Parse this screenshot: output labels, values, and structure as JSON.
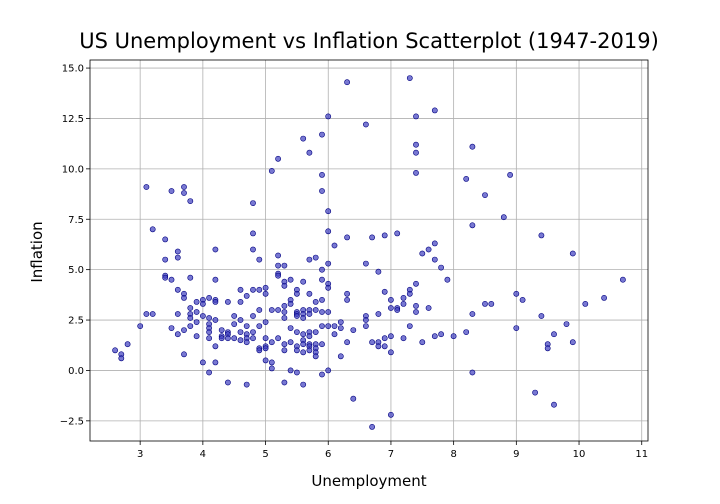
{
  "chart_data": {
    "type": "scatter",
    "title": "US Unemployment vs Inflation Scatterplot (1947-2019)",
    "xlabel": "Unemployment",
    "ylabel": "Inflation",
    "xlim": [
      2.2,
      11.1
    ],
    "ylim": [
      -3.5,
      15.4
    ],
    "xticks": [
      3,
      4,
      5,
      6,
      7,
      8,
      9,
      10,
      11
    ],
    "yticks": [
      -2.5,
      0.0,
      2.5,
      5.0,
      7.5,
      10.0,
      12.5,
      15.0
    ],
    "ytick_labels": [
      "−2.5",
      "0.0",
      "2.5",
      "5.0",
      "7.5",
      "10.0",
      "12.5",
      "15.0"
    ],
    "grid": true,
    "marker_color": "#3f3fbf",
    "marker_edge_color": "#000080",
    "points": [
      [
        2.6,
        1.0
      ],
      [
        2.7,
        0.8
      ],
      [
        2.7,
        0.6
      ],
      [
        2.8,
        1.3
      ],
      [
        3.0,
        2.2
      ],
      [
        3.1,
        9.1
      ],
      [
        3.1,
        2.8
      ],
      [
        3.2,
        7.0
      ],
      [
        3.2,
        2.8
      ],
      [
        3.4,
        6.5
      ],
      [
        3.4,
        5.5
      ],
      [
        3.4,
        4.7
      ],
      [
        3.4,
        4.6
      ],
      [
        3.5,
        8.9
      ],
      [
        3.5,
        4.5
      ],
      [
        3.5,
        2.1
      ],
      [
        3.6,
        5.9
      ],
      [
        3.6,
        5.6
      ],
      [
        3.6,
        4.0
      ],
      [
        3.6,
        2.8
      ],
      [
        3.6,
        1.8
      ],
      [
        3.7,
        9.1
      ],
      [
        3.7,
        8.8
      ],
      [
        3.7,
        3.8
      ],
      [
        3.7,
        3.6
      ],
      [
        3.7,
        2.0
      ],
      [
        3.7,
        0.8
      ],
      [
        3.8,
        8.4
      ],
      [
        3.8,
        4.6
      ],
      [
        3.8,
        3.1
      ],
      [
        3.8,
        2.8
      ],
      [
        3.8,
        2.6
      ],
      [
        3.8,
        2.2
      ],
      [
        3.9,
        3.4
      ],
      [
        3.9,
        2.9
      ],
      [
        3.9,
        2.4
      ],
      [
        3.9,
        1.7
      ],
      [
        4.0,
        3.5
      ],
      [
        4.0,
        3.3
      ],
      [
        4.0,
        2.7
      ],
      [
        4.0,
        0.4
      ],
      [
        4.1,
        3.6
      ],
      [
        4.1,
        2.6
      ],
      [
        4.1,
        2.3
      ],
      [
        4.1,
        2.1
      ],
      [
        4.1,
        1.9
      ],
      [
        4.1,
        1.6
      ],
      [
        4.1,
        -0.1
      ],
      [
        4.2,
        6.0
      ],
      [
        4.2,
        4.5
      ],
      [
        4.2,
        3.5
      ],
      [
        4.2,
        3.4
      ],
      [
        4.2,
        2.5
      ],
      [
        4.2,
        1.2
      ],
      [
        4.2,
        0.4
      ],
      [
        4.3,
        2.0
      ],
      [
        4.3,
        1.7
      ],
      [
        4.3,
        1.6
      ],
      [
        4.4,
        3.4
      ],
      [
        4.4,
        1.9
      ],
      [
        4.4,
        1.8
      ],
      [
        4.4,
        1.6
      ],
      [
        4.4,
        -0.6
      ],
      [
        4.5,
        2.7
      ],
      [
        4.5,
        2.3
      ],
      [
        4.5,
        1.6
      ],
      [
        4.6,
        4.0
      ],
      [
        4.6,
        3.4
      ],
      [
        4.6,
        2.5
      ],
      [
        4.6,
        1.9
      ],
      [
        4.6,
        1.5
      ],
      [
        4.7,
        3.7
      ],
      [
        4.7,
        2.2
      ],
      [
        4.7,
        1.8
      ],
      [
        4.7,
        1.6
      ],
      [
        4.7,
        1.4
      ],
      [
        4.7,
        -0.7
      ],
      [
        4.8,
        8.3
      ],
      [
        4.8,
        6.8
      ],
      [
        4.8,
        6.0
      ],
      [
        4.8,
        4.0
      ],
      [
        4.8,
        2.7
      ],
      [
        4.8,
        1.9
      ],
      [
        4.8,
        1.6
      ],
      [
        4.9,
        5.5
      ],
      [
        4.9,
        4.0
      ],
      [
        4.9,
        3.0
      ],
      [
        4.9,
        2.2
      ],
      [
        4.9,
        1.1
      ],
      [
        4.9,
        1.0
      ],
      [
        5.0,
        4.1
      ],
      [
        5.0,
        3.8
      ],
      [
        5.0,
        2.4
      ],
      [
        5.0,
        1.6
      ],
      [
        5.0,
        1.2
      ],
      [
        5.0,
        1.1
      ],
      [
        5.0,
        0.5
      ],
      [
        5.1,
        9.9
      ],
      [
        5.1,
        3.0
      ],
      [
        5.1,
        1.4
      ],
      [
        5.1,
        0.4
      ],
      [
        5.1,
        0.1
      ],
      [
        5.2,
        10.5
      ],
      [
        5.2,
        5.7
      ],
      [
        5.2,
        5.2
      ],
      [
        5.2,
        4.8
      ],
      [
        5.2,
        4.7
      ],
      [
        5.2,
        3.0
      ],
      [
        5.2,
        1.6
      ],
      [
        5.3,
        5.2
      ],
      [
        5.3,
        4.4
      ],
      [
        5.3,
        4.2
      ],
      [
        5.3,
        3.2
      ],
      [
        5.3,
        2.9
      ],
      [
        5.3,
        2.6
      ],
      [
        5.3,
        1.3
      ],
      [
        5.3,
        1.0
      ],
      [
        5.3,
        -0.6
      ],
      [
        5.4,
        4.5
      ],
      [
        5.4,
        3.5
      ],
      [
        5.4,
        3.3
      ],
      [
        5.4,
        2.1
      ],
      [
        5.4,
        1.4
      ],
      [
        5.4,
        0.0
      ],
      [
        5.5,
        4.0
      ],
      [
        5.5,
        3.8
      ],
      [
        5.5,
        2.9
      ],
      [
        5.5,
        2.8
      ],
      [
        5.5,
        2.7
      ],
      [
        5.5,
        1.9
      ],
      [
        5.5,
        1.2
      ],
      [
        5.5,
        1.0
      ],
      [
        5.5,
        -0.1
      ],
      [
        5.6,
        11.5
      ],
      [
        5.6,
        4.4
      ],
      [
        5.6,
        3.0
      ],
      [
        5.6,
        2.8
      ],
      [
        5.6,
        2.6
      ],
      [
        5.6,
        1.8
      ],
      [
        5.6,
        1.5
      ],
      [
        5.6,
        1.3
      ],
      [
        5.6,
        0.9
      ],
      [
        5.6,
        -0.7
      ],
      [
        5.7,
        10.8
      ],
      [
        5.7,
        5.5
      ],
      [
        5.7,
        3.8
      ],
      [
        5.7,
        3.0
      ],
      [
        5.7,
        2.8
      ],
      [
        5.7,
        1.9
      ],
      [
        5.7,
        1.7
      ],
      [
        5.7,
        1.3
      ],
      [
        5.7,
        1.2
      ],
      [
        5.7,
        1.0
      ],
      [
        5.8,
        5.6
      ],
      [
        5.8,
        3.4
      ],
      [
        5.8,
        3.0
      ],
      [
        5.8,
        1.9
      ],
      [
        5.8,
        1.3
      ],
      [
        5.8,
        1.1
      ],
      [
        5.8,
        0.9
      ],
      [
        5.8,
        0.7
      ],
      [
        5.9,
        11.7
      ],
      [
        5.9,
        9.7
      ],
      [
        5.9,
        8.9
      ],
      [
        5.9,
        5.0
      ],
      [
        5.9,
        4.5
      ],
      [
        5.9,
        3.5
      ],
      [
        5.9,
        2.9
      ],
      [
        5.9,
        2.2
      ],
      [
        5.9,
        1.3
      ],
      [
        5.9,
        -0.2
      ],
      [
        6.0,
        12.6
      ],
      [
        6.0,
        7.9
      ],
      [
        6.0,
        6.9
      ],
      [
        6.0,
        5.3
      ],
      [
        6.0,
        4.3
      ],
      [
        6.0,
        4.1
      ],
      [
        6.0,
        2.9
      ],
      [
        6.0,
        2.2
      ],
      [
        6.0,
        0.0
      ],
      [
        6.1,
        6.2
      ],
      [
        6.1,
        2.2
      ],
      [
        6.1,
        1.8
      ],
      [
        6.2,
        2.4
      ],
      [
        6.2,
        2.1
      ],
      [
        6.2,
        0.7
      ],
      [
        6.3,
        14.3
      ],
      [
        6.3,
        6.6
      ],
      [
        6.3,
        3.8
      ],
      [
        6.3,
        3.5
      ],
      [
        6.3,
        1.4
      ],
      [
        6.4,
        2.0
      ],
      [
        6.4,
        -1.4
      ],
      [
        6.6,
        12.2
      ],
      [
        6.6,
        5.3
      ],
      [
        6.6,
        2.7
      ],
      [
        6.6,
        2.5
      ],
      [
        6.6,
        2.2
      ],
      [
        6.7,
        6.6
      ],
      [
        6.7,
        1.4
      ],
      [
        6.7,
        -2.8
      ],
      [
        6.8,
        4.9
      ],
      [
        6.8,
        2.8
      ],
      [
        6.8,
        1.4
      ],
      [
        6.8,
        1.2
      ],
      [
        6.9,
        6.7
      ],
      [
        6.9,
        3.9
      ],
      [
        6.9,
        1.6
      ],
      [
        6.9,
        1.2
      ],
      [
        7.0,
        3.5
      ],
      [
        7.0,
        3.1
      ],
      [
        7.0,
        1.7
      ],
      [
        7.0,
        0.9
      ],
      [
        7.0,
        -2.2
      ],
      [
        7.1,
        6.8
      ],
      [
        7.1,
        3.1
      ],
      [
        7.1,
        3.0
      ],
      [
        7.2,
        3.6
      ],
      [
        7.2,
        3.3
      ],
      [
        7.2,
        1.6
      ],
      [
        7.3,
        14.5
      ],
      [
        7.3,
        4.0
      ],
      [
        7.3,
        3.8
      ],
      [
        7.3,
        2.2
      ],
      [
        7.4,
        12.6
      ],
      [
        7.4,
        11.2
      ],
      [
        7.4,
        10.8
      ],
      [
        7.4,
        9.8
      ],
      [
        7.4,
        4.3
      ],
      [
        7.4,
        3.2
      ],
      [
        7.4,
        2.9
      ],
      [
        7.5,
        5.8
      ],
      [
        7.5,
        1.4
      ],
      [
        7.6,
        6.0
      ],
      [
        7.6,
        3.1
      ],
      [
        7.7,
        12.9
      ],
      [
        7.7,
        6.3
      ],
      [
        7.7,
        5.5
      ],
      [
        7.7,
        1.7
      ],
      [
        7.8,
        5.1
      ],
      [
        7.8,
        1.8
      ],
      [
        7.9,
        4.5
      ],
      [
        8.0,
        1.7
      ],
      [
        8.2,
        9.5
      ],
      [
        8.2,
        1.9
      ],
      [
        8.3,
        11.1
      ],
      [
        8.3,
        7.2
      ],
      [
        8.3,
        2.8
      ],
      [
        8.3,
        -0.1
      ],
      [
        8.5,
        8.7
      ],
      [
        8.5,
        3.3
      ],
      [
        8.6,
        3.3
      ],
      [
        8.8,
        7.6
      ],
      [
        8.9,
        9.7
      ],
      [
        9.0,
        3.8
      ],
      [
        9.0,
        2.1
      ],
      [
        9.1,
        3.5
      ],
      [
        9.3,
        -1.1
      ],
      [
        9.4,
        6.7
      ],
      [
        9.4,
        2.7
      ],
      [
        9.5,
        1.3
      ],
      [
        9.5,
        1.1
      ],
      [
        9.6,
        1.8
      ],
      [
        9.6,
        -1.7
      ],
      [
        9.8,
        2.3
      ],
      [
        9.9,
        5.8
      ],
      [
        9.9,
        1.4
      ],
      [
        10.1,
        3.3
      ],
      [
        10.4,
        3.6
      ],
      [
        10.7,
        4.5
      ]
    ]
  }
}
